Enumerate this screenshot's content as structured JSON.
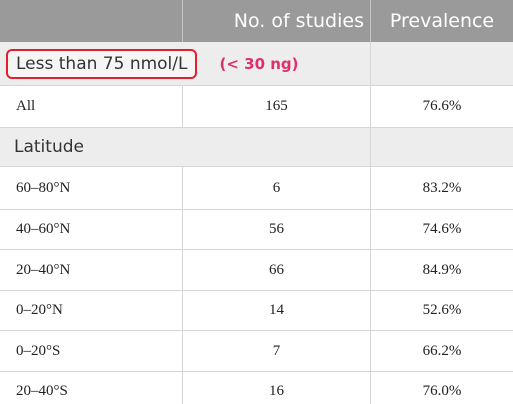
{
  "table": {
    "columns": [
      "No. of studies",
      "Prevalence"
    ],
    "sections": [
      {
        "label": "Less than 75 nmol/L",
        "note": "(< 30 ng)",
        "rows": [
          [
            "All",
            "165",
            "76.6%"
          ]
        ]
      },
      {
        "label": "Latitude",
        "rows": [
          [
            "60–80°N",
            "6",
            "83.2%"
          ],
          [
            "40–60°N",
            "56",
            "74.6%"
          ],
          [
            "20–40°N",
            "66",
            "84.9%"
          ],
          [
            "0–20°N",
            "14",
            "52.6%"
          ],
          [
            "0–20°S",
            "7",
            "66.2%"
          ],
          [
            "20–40°S",
            "16",
            "76.0%"
          ]
        ]
      }
    ]
  }
}
